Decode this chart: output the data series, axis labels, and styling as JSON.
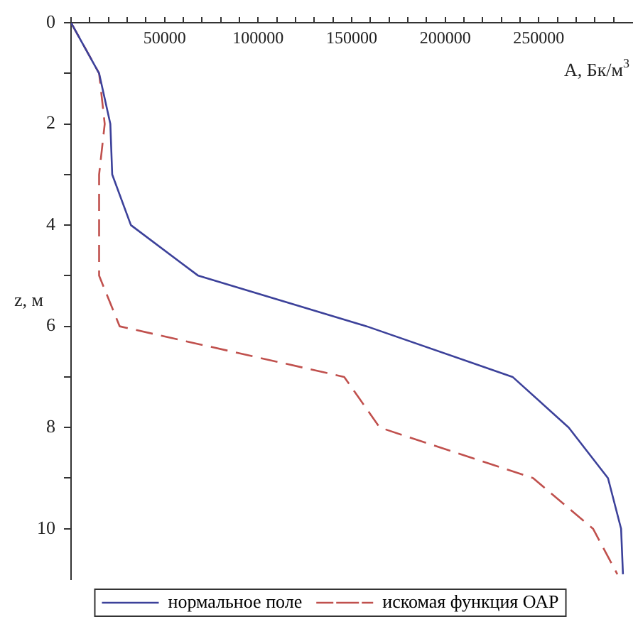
{
  "chart_data": {
    "type": "line",
    "xlabel": "A, Бк/м$^{3}$",
    "ylabel": "z, м",
    "legend": "bottom",
    "grid": false,
    "xlim": [
      0,
      300000
    ],
    "ylim": [
      11,
      0
    ],
    "xticks": [
      {
        "value": 0,
        "label": null
      },
      {
        "value": 10000,
        "label": null
      },
      {
        "value": 20000,
        "label": null
      },
      {
        "value": 30000,
        "label": null
      },
      {
        "value": 40000,
        "label": null
      },
      50000,
      {
        "value": 60000,
        "label": null
      },
      {
        "value": 70000,
        "label": null
      },
      {
        "value": 80000,
        "label": null
      },
      {
        "value": 90000,
        "label": null
      },
      100000,
      {
        "value": 110000,
        "label": null
      },
      {
        "value": 120000,
        "label": null
      },
      {
        "value": 130000,
        "label": null
      },
      {
        "value": 140000,
        "label": null
      },
      150000,
      {
        "value": 160000,
        "label": null
      },
      {
        "value": 170000,
        "label": null
      },
      {
        "value": 180000,
        "label": null
      },
      {
        "value": 190000,
        "label": null
      },
      200000,
      {
        "value": 210000,
        "label": null
      },
      {
        "value": 220000,
        "label": null
      },
      {
        "value": 230000,
        "label": null
      },
      {
        "value": 240000,
        "label": null
      },
      250000,
      {
        "value": 260000,
        "label": null
      },
      {
        "value": 270000,
        "label": null
      },
      {
        "value": 280000,
        "label": null
      },
      {
        "value": 290000,
        "label": null
      }
    ],
    "yticks": [
      0,
      {
        "value": 1,
        "label": null
      },
      2,
      {
        "value": 3,
        "label": null
      },
      4,
      {
        "value": 5,
        "label": null
      },
      6,
      {
        "value": 7,
        "label": null
      },
      8,
      {
        "value": 9,
        "label": null
      },
      10
    ],
    "series": [
      {
        "name": "нормальное поле",
        "color": "#3c419a",
        "line_style": "solid",
        "x": [
          0,
          15000,
          21000,
          22000,
          32000,
          68000,
          158000,
          236000,
          266000,
          287000,
          294000,
          295000
        ],
        "values": [
          0,
          1,
          2,
          3,
          4,
          5,
          6,
          7,
          8,
          9,
          10,
          10.9
        ]
      },
      {
        "name": "искомая функция ОАР",
        "color": "#c0504d",
        "line_style": "dashed",
        "x": [
          0,
          15000,
          18000,
          15000,
          15000,
          15000,
          26000,
          146000,
          165000,
          247000,
          279000,
          292000
        ],
        "values": [
          0,
          1,
          2,
          3,
          4,
          5,
          6,
          7,
          8,
          9,
          10,
          10.9
        ]
      }
    ]
  }
}
